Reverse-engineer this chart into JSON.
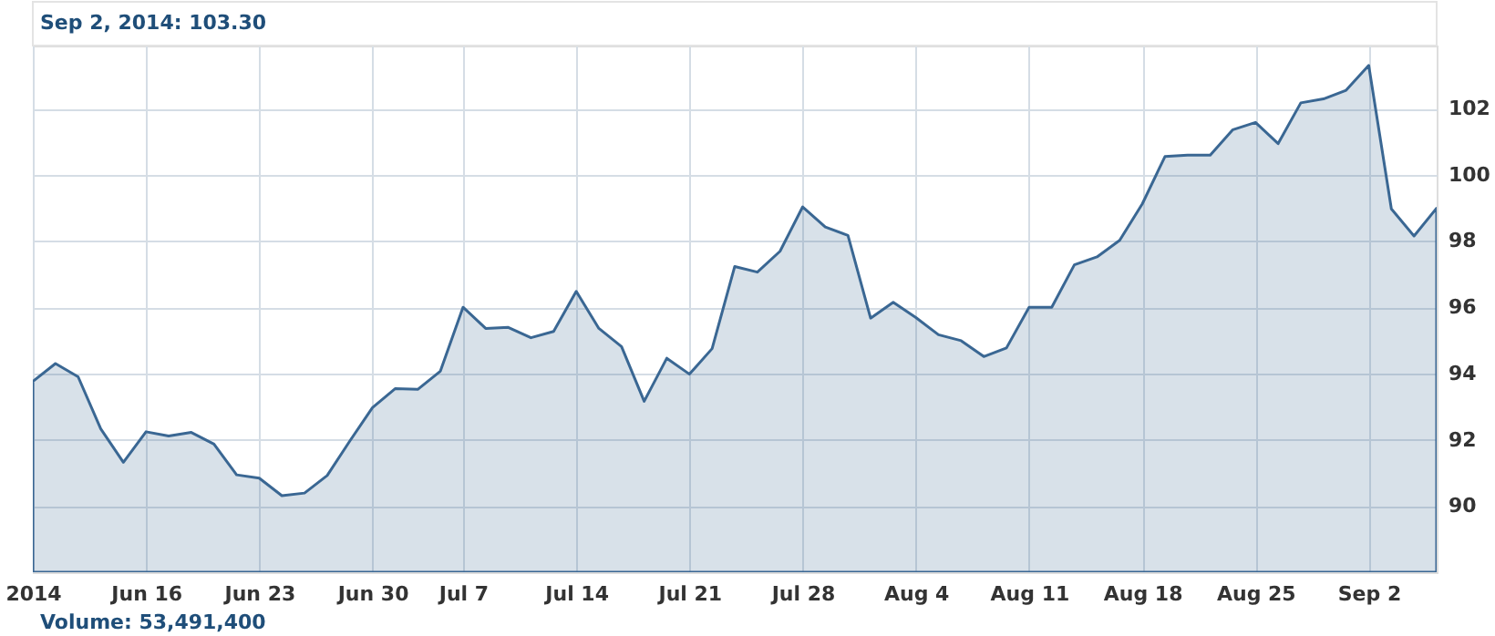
{
  "chart_data": {
    "type": "area",
    "categories": [
      "2014",
      null,
      null,
      null,
      null,
      "Jun 16",
      null,
      null,
      null,
      null,
      "Jun 23",
      null,
      null,
      null,
      null,
      "Jun 30",
      null,
      null,
      null,
      "Jul 7",
      null,
      null,
      null,
      null,
      "Jul 14",
      null,
      null,
      null,
      null,
      "Jul 21",
      null,
      null,
      null,
      null,
      "Jul 28",
      null,
      null,
      null,
      null,
      "Aug 4",
      null,
      null,
      null,
      null,
      "Aug 11",
      null,
      null,
      null,
      null,
      "Aug 18",
      null,
      null,
      null,
      null,
      "Aug 25",
      null,
      null,
      null,
      null,
      "Sep 2",
      null,
      null,
      null
    ],
    "series": [
      {
        "color": "#3a6793",
        "values": [
          93.76,
          94.3,
          93.9,
          92.33,
          91.32,
          92.24,
          92.11,
          92.22,
          91.87,
          90.94,
          90.84,
          90.31,
          90.39,
          90.92,
          91.96,
          92.97,
          93.54,
          93.52,
          94.07,
          96.0,
          95.36,
          95.39,
          95.08,
          95.27,
          96.48,
          95.36,
          94.81,
          93.16,
          94.46,
          93.98,
          94.75,
          97.23,
          97.06,
          97.69,
          99.03,
          98.42,
          98.17,
          95.67,
          96.15,
          95.69,
          95.17,
          94.99,
          94.51,
          94.77,
          96.0,
          96.0,
          97.28,
          97.52,
          98.02,
          99.12,
          100.55,
          100.59,
          100.59,
          101.36,
          101.58,
          100.94,
          102.17,
          102.29,
          102.55,
          103.3,
          98.97,
          98.15,
          98.99
        ]
      }
    ],
    "ylim": [
      88,
      103.9
    ],
    "yticks": [
      90,
      92,
      94,
      96,
      98,
      100,
      102
    ],
    "grid": true,
    "annotations": [
      "Sep 2, 2014: 103.30",
      "Volume: 53,491,400"
    ]
  }
}
